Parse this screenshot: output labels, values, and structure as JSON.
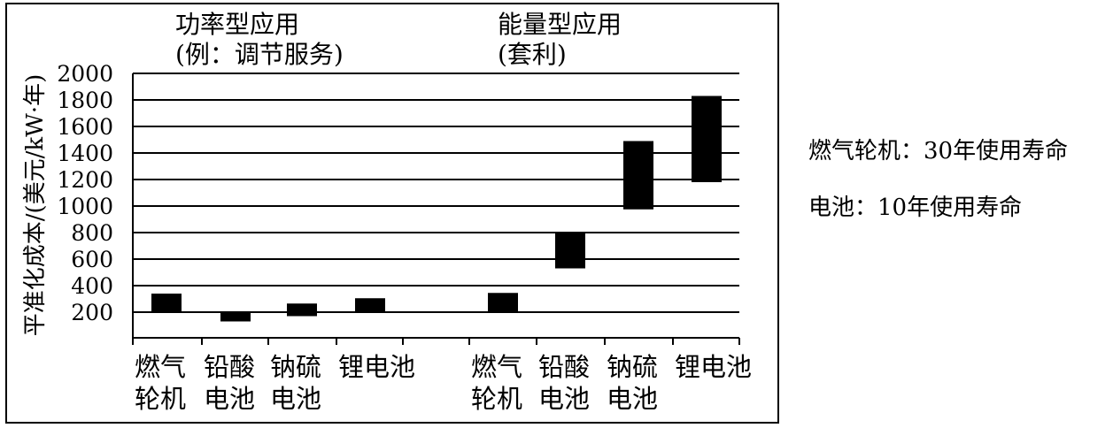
{
  "chart_data": {
    "type": "bar",
    "ylabel": "平准化成本/(美元/kW·年)",
    "ylim": [
      0,
      2000
    ],
    "y_ticks": [
      200,
      400,
      600,
      800,
      1000,
      1200,
      1400,
      1600,
      1800,
      2000
    ],
    "grid": true,
    "groups": [
      {
        "title": [
          "功率型应用",
          "(例：调节服务)"
        ],
        "categories": [
          {
            "label": [
              "燃气",
              "轮机"
            ],
            "range": [
              200,
              340
            ]
          },
          {
            "label": [
              "铅酸",
              "电池"
            ],
            "range": [
              130,
              200
            ]
          },
          {
            "label": [
              "钠硫",
              "电池"
            ],
            "range": [
              170,
              265
            ]
          },
          {
            "label": [
              "锂电池"
            ],
            "range": [
              200,
              305
            ]
          }
        ]
      },
      {
        "title": [
          "能量型应用",
          "(套利)"
        ],
        "categories": [
          {
            "label": [
              "燃气",
              "轮机"
            ],
            "range": [
              200,
              345
            ]
          },
          {
            "label": [
              "铅酸",
              "电池"
            ],
            "range": [
              530,
              795
            ]
          },
          {
            "label": [
              "钠硫",
              "电池"
            ],
            "range": [
              975,
              1490
            ]
          },
          {
            "label": [
              "锂电池"
            ],
            "range": [
              1180,
              1830
            ]
          }
        ]
      }
    ]
  },
  "notes": [
    "燃气轮机：30年使用寿命",
    "电池：10年使用寿命"
  ]
}
